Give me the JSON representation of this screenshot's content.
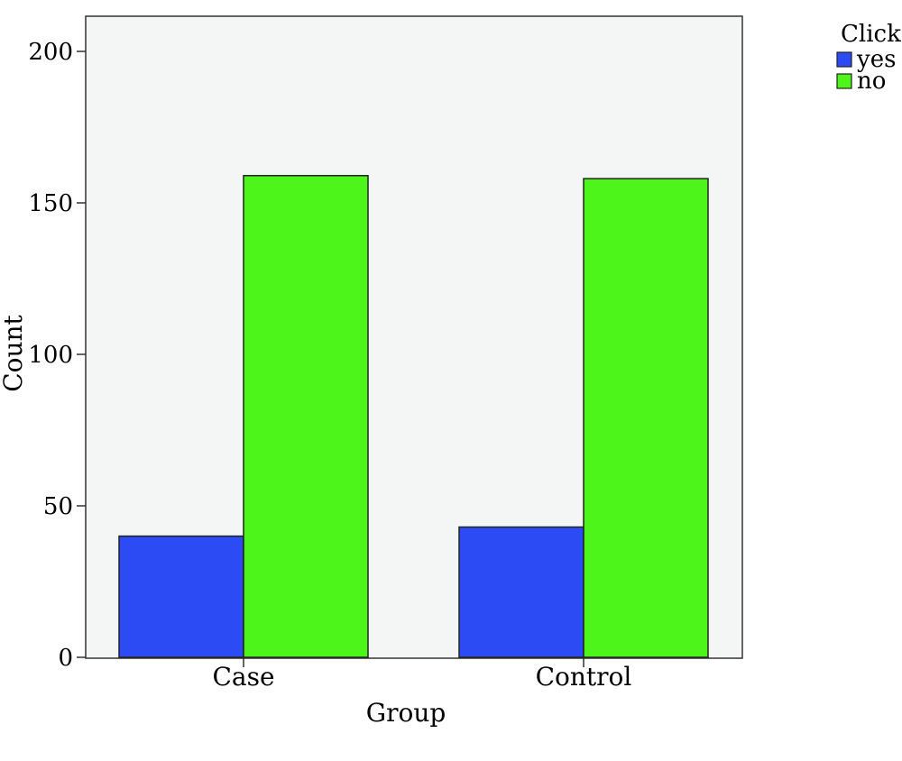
{
  "chart_data": {
    "type": "bar",
    "xlabel": "Group",
    "ylabel": "Count",
    "categories": [
      "Case",
      "Control"
    ],
    "series": [
      {
        "name": "yes",
        "values": [
          40,
          43
        ],
        "color": "#2d4bf5"
      },
      {
        "name": "no",
        "values": [
          159,
          158
        ],
        "color": "#4df51a"
      }
    ],
    "ylim": [
      0,
      210
    ],
    "yticks": [
      0,
      50,
      100,
      150,
      200
    ],
    "legend": {
      "title": "Click",
      "placement": "top-right, outside plot"
    },
    "grid": false,
    "plot_background": "#f4f5f5"
  }
}
